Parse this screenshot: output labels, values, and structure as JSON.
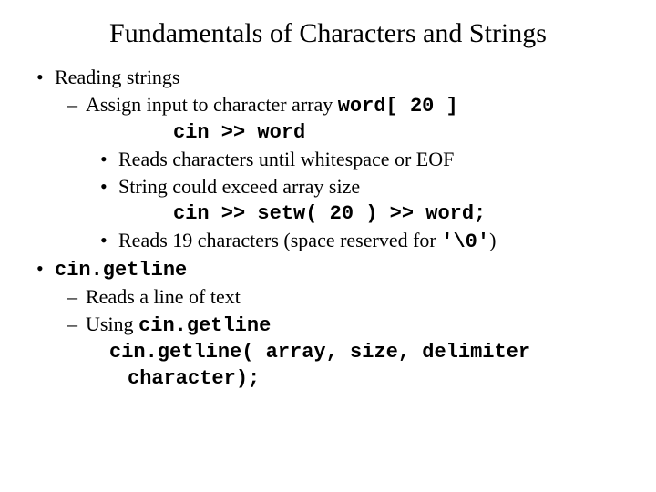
{
  "title": "Fundamentals of Characters and Strings",
  "list": {
    "item1": {
      "bullet": "•",
      "text": "Reading strings"
    },
    "item1_1": {
      "bullet": "–",
      "text": "Assign input to character array ",
      "code": "word[ 20 ]"
    },
    "code1": "cin >> word",
    "item1_1_1": {
      "bullet": "•",
      "text": "Reads characters until whitespace or EOF"
    },
    "item1_1_2": {
      "bullet": "•",
      "text": "String could exceed array size"
    },
    "code2": "cin >> setw( 20 ) >> word;",
    "item1_1_3": {
      "bullet": "•",
      "text": "Reads 19 characters (space reserved for ",
      "code": "'\\0'",
      "tail": ")"
    },
    "item2": {
      "bullet": "•",
      "code": "cin.getline"
    },
    "item2_1": {
      "bullet": "–",
      "text": "Reads a line of text"
    },
    "item2_2": {
      "bullet": "–",
      "text": "Using ",
      "code": "cin.getline"
    },
    "code3a": "cin.getline( array, size, delimiter",
    "code3b": "character);"
  }
}
